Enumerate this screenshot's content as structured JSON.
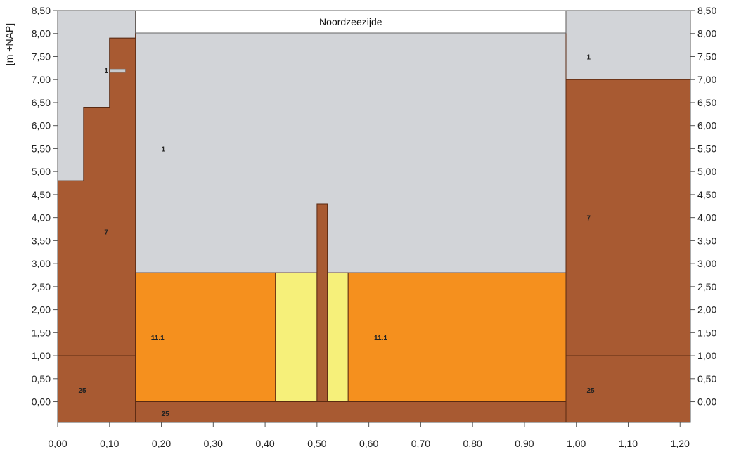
{
  "chart_data": {
    "type": "area",
    "title": "Noordzeezijde",
    "ylabel": "[m +NAP]",
    "xlabel": "",
    "xlim": [
      0.0,
      1.22
    ],
    "ylim": [
      -0.45,
      8.5
    ],
    "x_ticks": [
      "0,00",
      "0,10",
      "0,20",
      "0,30",
      "0,40",
      "0,50",
      "0,60",
      "0,70",
      "0,80",
      "0,90",
      "1,00",
      "1,10",
      "1,20"
    ],
    "y_ticks": [
      "8,50",
      "8,00",
      "7,50",
      "7,00",
      "6,50",
      "6,00",
      "5,50",
      "5,00",
      "4,50",
      "4,00",
      "3,50",
      "3,00",
      "2,50",
      "2,00",
      "1,50",
      "1,00",
      "0,50",
      "0,00"
    ],
    "colors": {
      "material_1": "#d2d4d8",
      "material_7": "#a85a32",
      "material_25": "#a85a32",
      "material_11_1": "#f5901e",
      "yellow": "#f6f07a",
      "outline": "#5a2a12"
    },
    "regions": [
      {
        "name": "gray-left-top",
        "material": "1",
        "polygon": [
          [
            0.0,
            4.8
          ],
          [
            0.05,
            4.8
          ],
          [
            0.05,
            6.4
          ],
          [
            0.1,
            6.4
          ],
          [
            0.1,
            7.9
          ],
          [
            0.15,
            7.9
          ],
          [
            0.15,
            8.5
          ],
          [
            0.0,
            8.5
          ]
        ]
      },
      {
        "name": "gray-center",
        "material": "1",
        "polygon": [
          [
            0.15,
            2.8
          ],
          [
            0.98,
            2.8
          ],
          [
            0.98,
            8.5
          ],
          [
            0.15,
            8.5
          ]
        ]
      },
      {
        "name": "gray-right-top",
        "material": "1",
        "polygon": [
          [
            0.98,
            7.0
          ],
          [
            1.22,
            7.0
          ],
          [
            1.22,
            8.5
          ],
          [
            0.98,
            8.5
          ]
        ]
      },
      {
        "name": "brown-left-7",
        "material": "7",
        "polygon": [
          [
            0.0,
            1.0
          ],
          [
            0.15,
            1.0
          ],
          [
            0.15,
            7.9
          ],
          [
            0.1,
            7.9
          ],
          [
            0.1,
            6.4
          ],
          [
            0.05,
            6.4
          ],
          [
            0.05,
            4.8
          ],
          [
            0.0,
            4.8
          ]
        ]
      },
      {
        "name": "brown-left-25",
        "material": "25",
        "polygon": [
          [
            0.0,
            -0.45
          ],
          [
            0.15,
            -0.45
          ],
          [
            0.15,
            1.0
          ],
          [
            0.0,
            1.0
          ]
        ]
      },
      {
        "name": "brown-bottom-25",
        "material": "25",
        "polygon": [
          [
            0.15,
            -0.45
          ],
          [
            0.98,
            -0.45
          ],
          [
            0.98,
            0.0
          ],
          [
            0.15,
            0.0
          ]
        ]
      },
      {
        "name": "brown-right-7",
        "material": "7",
        "polygon": [
          [
            0.98,
            1.0
          ],
          [
            1.22,
            1.0
          ],
          [
            1.22,
            7.0
          ],
          [
            0.98,
            7.0
          ]
        ]
      },
      {
        "name": "brown-right-25",
        "material": "25",
        "polygon": [
          [
            0.98,
            -0.45
          ],
          [
            1.22,
            -0.45
          ],
          [
            1.22,
            1.0
          ],
          [
            0.98,
            1.0
          ]
        ]
      },
      {
        "name": "orange-left-11-1",
        "material": "11.1",
        "polygon": [
          [
            0.15,
            0.0
          ],
          [
            0.42,
            0.0
          ],
          [
            0.42,
            2.8
          ],
          [
            0.15,
            2.8
          ]
        ]
      },
      {
        "name": "orange-right-11-1",
        "material": "11.1",
        "polygon": [
          [
            0.56,
            0.0
          ],
          [
            0.98,
            0.0
          ],
          [
            0.98,
            2.8
          ],
          [
            0.56,
            2.8
          ]
        ]
      },
      {
        "name": "yellow-left",
        "material": "yellow",
        "polygon": [
          [
            0.42,
            0.0
          ],
          [
            0.5,
            0.0
          ],
          [
            0.5,
            2.8
          ],
          [
            0.42,
            2.8
          ]
        ]
      },
      {
        "name": "yellow-right",
        "material": "yellow",
        "polygon": [
          [
            0.52,
            0.0
          ],
          [
            0.56,
            0.0
          ],
          [
            0.56,
            2.8
          ],
          [
            0.52,
            2.8
          ]
        ]
      },
      {
        "name": "brown-center-pole",
        "material": "7",
        "polygon": [
          [
            0.5,
            0.0
          ],
          [
            0.52,
            0.0
          ],
          [
            0.52,
            4.3
          ],
          [
            0.5,
            4.3
          ]
        ]
      }
    ],
    "labels": [
      {
        "text": "1",
        "x": 0.09,
        "y": 7.2,
        "with_bar": true
      },
      {
        "text": "1",
        "x": 0.2,
        "y": 5.5
      },
      {
        "text": "1",
        "x": 1.02,
        "y": 7.5
      },
      {
        "text": "7",
        "x": 0.09,
        "y": 3.7
      },
      {
        "text": "7",
        "x": 1.02,
        "y": 4.0
      },
      {
        "text": "11.1",
        "x": 0.18,
        "y": 1.4
      },
      {
        "text": "11.1",
        "x": 0.61,
        "y": 1.4
      },
      {
        "text": "25",
        "x": 0.04,
        "y": 0.25
      },
      {
        "text": "25",
        "x": 0.2,
        "y": -0.25
      },
      {
        "text": "25",
        "x": 1.02,
        "y": 0.25
      }
    ],
    "grid": false,
    "legend": "none"
  }
}
